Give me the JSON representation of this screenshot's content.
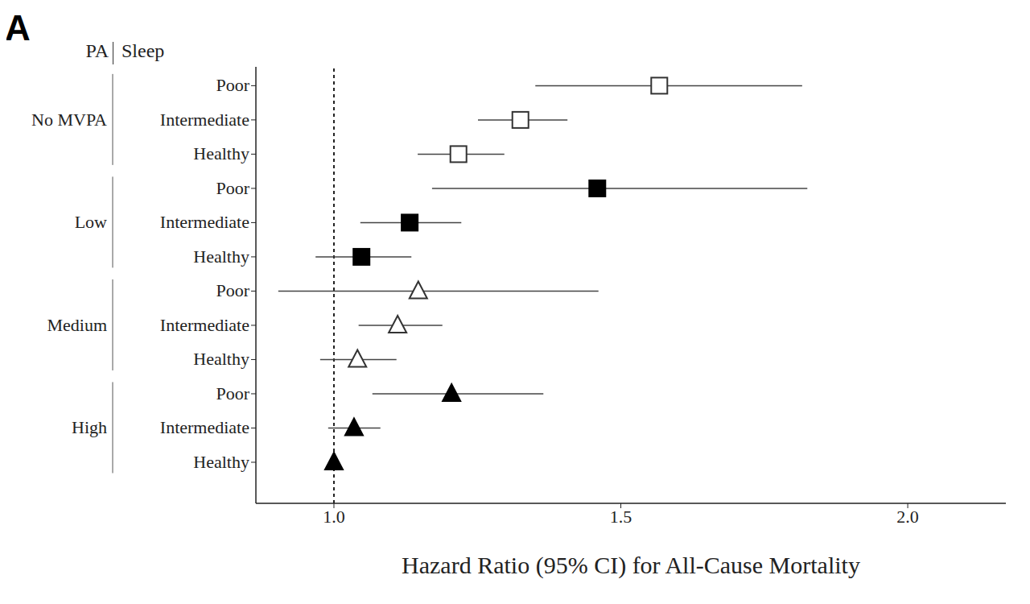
{
  "chart_data": {
    "type": "forest",
    "title": "A",
    "group_header": "PA",
    "category_header": "Sleep",
    "x_label": "Hazard Ratio (95% CI) for All-Cause Mortality",
    "xlim": [
      0.864,
      2.171
    ],
    "xticks": [
      {
        "value": 1,
        "label": "1.0"
      },
      {
        "value": 1.5,
        "label": "1.5"
      },
      {
        "value": 2,
        "label": "2.0"
      }
    ],
    "reference_line": 1,
    "grid": false,
    "series": [
      {
        "name": "No MVPA",
        "marker": "square_open",
        "color": "#333333",
        "categories": [
          "Poor",
          "Intermediate",
          "Healthy"
        ],
        "values": [
          1.567,
          1.325,
          1.217
        ],
        "lower": [
          1.351,
          1.251,
          1.146
        ],
        "upper": [
          1.816,
          1.407,
          1.297
        ]
      },
      {
        "name": "Low",
        "marker": "square_filled",
        "color": "#000000",
        "categories": [
          "Poor",
          "Intermediate",
          "Healthy"
        ],
        "values": [
          1.459,
          1.132,
          1.048
        ],
        "lower": [
          1.171,
          1.046,
          0.968
        ],
        "upper": [
          1.825,
          1.222,
          1.135
        ]
      },
      {
        "name": "Medium",
        "marker": "triangle_open",
        "color": "#333333",
        "categories": [
          "Poor",
          "Intermediate",
          "Healthy"
        ],
        "values": [
          1.147,
          1.111,
          1.041
        ],
        "lower": [
          0.903,
          1.043,
          0.976
        ],
        "upper": [
          1.461,
          1.189,
          1.109
        ]
      },
      {
        "name": "High",
        "marker": "triangle_filled",
        "color": "#000000",
        "categories": [
          "Poor",
          "Intermediate",
          "Healthy"
        ],
        "values": [
          1.205,
          1.035,
          1
        ],
        "lower": [
          1.067,
          0.99,
          null
        ],
        "upper": [
          1.365,
          1.081,
          null
        ]
      }
    ]
  }
}
